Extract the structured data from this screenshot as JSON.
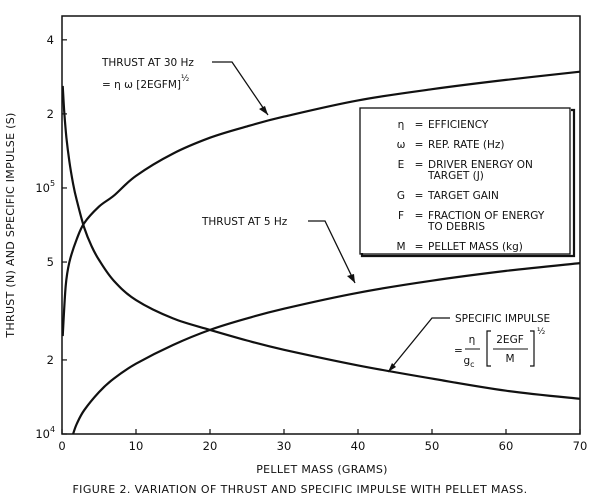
{
  "chart_data": {
    "type": "line",
    "title": "",
    "xlabel": "PELLET MASS (GRAMS)",
    "ylabel": "THRUST (N) AND SPECIFIC IMPULSE (S)",
    "xlim": [
      0,
      70
    ],
    "ylim": [
      10000,
      500000
    ],
    "yscale": "log",
    "grid": false,
    "x_ticks": [
      "0",
      "10",
      "20",
      "30",
      "40",
      "50",
      "60",
      "70"
    ],
    "y_ticks": [
      {
        "value": 10000,
        "label": "10",
        "sup": "4"
      },
      {
        "value": 20000,
        "label": "2",
        "sup": ""
      },
      {
        "value": 50000,
        "label": "5",
        "sup": ""
      },
      {
        "value": 100000,
        "label": "10",
        "sup": "5"
      },
      {
        "value": 200000,
        "label": "2",
        "sup": ""
      },
      {
        "value": 400000,
        "label": "4",
        "sup": ""
      }
    ],
    "series": [
      {
        "name": "THRUST AT 30 Hz",
        "x": [
          0.1,
          0.5,
          1,
          2,
          3,
          5,
          7,
          10,
          15,
          20,
          25,
          30,
          40,
          50,
          60,
          70
        ],
        "y": [
          25000,
          40000,
          50000,
          62000,
          72000,
          84000,
          93000,
          112000,
          138000,
          160000,
          178000,
          195000,
          227000,
          252000,
          275000,
          297000
        ]
      },
      {
        "name": "THRUST AT 5 Hz",
        "x": [
          1.5,
          2,
          3,
          5,
          7,
          10,
          15,
          20,
          25,
          30,
          40,
          50,
          60,
          70
        ],
        "y": [
          10000,
          11000,
          12500,
          14800,
          16800,
          19300,
          23000,
          26500,
          29500,
          32300,
          37500,
          42000,
          46000,
          49500
        ]
      },
      {
        "name": "SPECIFIC IMPULSE",
        "x": [
          0.1,
          0.3,
          0.6,
          1,
          1.5,
          2,
          3,
          4,
          5,
          7,
          10,
          15,
          20,
          25,
          30,
          40,
          50,
          60,
          70
        ],
        "y": [
          260000,
          205000,
          160000,
          128000,
          104000,
          89000,
          69000,
          58000,
          51000,
          42000,
          35000,
          29500,
          26500,
          24000,
          22000,
          19000,
          16800,
          15000,
          13900
        ]
      }
    ],
    "annotations": {
      "thrust30_label": "THRUST AT 30 Hz",
      "thrust30_formula_prefix": "= η ω [2EGFM]",
      "thrust30_formula_exp": "½",
      "thrust5_label": "THRUST AT 5 Hz",
      "isp_label": "SPECIFIC IMPULSE",
      "isp_eq": "=",
      "isp_num": "η",
      "isp_den": "g",
      "isp_den_sub": "c",
      "isp_frac_num": "2EGF",
      "isp_frac_den": "M",
      "isp_exp": "½"
    },
    "legend": {
      "placement": "right, mid-upper",
      "rows": [
        {
          "sym": "η",
          "eq": "=",
          "text": "EFFICIENCY",
          "text2": ""
        },
        {
          "sym": "ω",
          "eq": "=",
          "text": "REP. RATE (Hz)",
          "text2": ""
        },
        {
          "sym": "E",
          "eq": "=",
          "text": "DRIVER ENERGY ON",
          "text2": "TARGET (J)"
        },
        {
          "sym": "G",
          "eq": "=",
          "text": "TARGET GAIN",
          "text2": ""
        },
        {
          "sym": "F",
          "eq": "=",
          "text": "FRACTION OF ENERGY",
          "text2": "TO DEBRIS"
        },
        {
          "sym": "M",
          "eq": "=",
          "text": "PELLET MASS (kg)",
          "text2": ""
        }
      ]
    }
  },
  "caption": "FIGURE 2.  VARIATION OF THRUST AND SPECIFIC IMPULSE WITH PELLET MASS."
}
